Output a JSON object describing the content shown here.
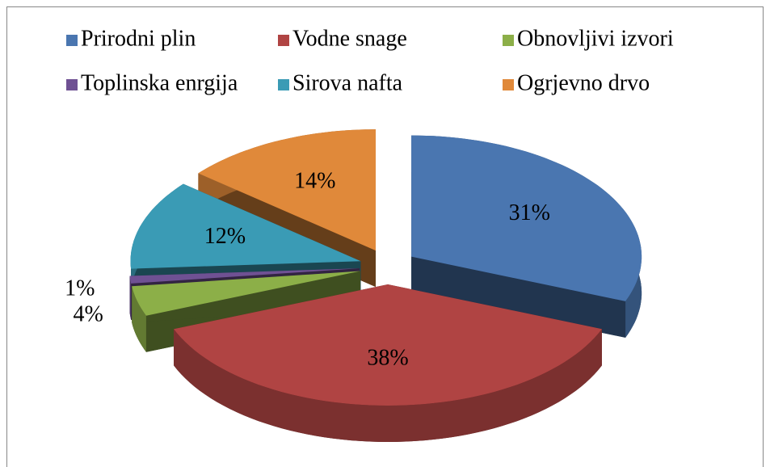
{
  "chart_data": {
    "type": "pie",
    "categories": [
      "Prirodni plin",
      "Vodne snage",
      "Obnovljivi izvori",
      "Toplinska enrgija",
      "Sirova nafta",
      "Ogrjevno drvo"
    ],
    "values": [
      31,
      38,
      4,
      1,
      12,
      14
    ],
    "value_labels": [
      "31%",
      "38%",
      "4%",
      "1%",
      "12%",
      "14%"
    ],
    "colors": [
      "#4a76b0",
      "#b04443",
      "#8caf48",
      "#6f5193",
      "#3a9bb5",
      "#e0893a"
    ],
    "legend": "top"
  }
}
